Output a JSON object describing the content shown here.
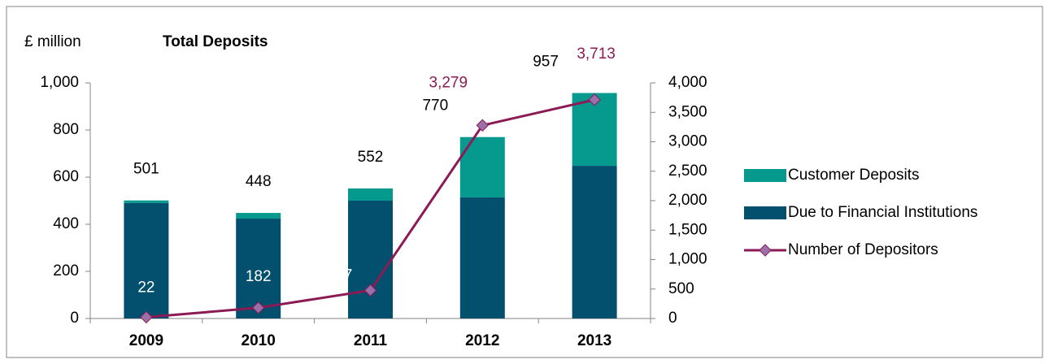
{
  "chart_data": {
    "type": "bar-line",
    "title": "Total Deposits",
    "y_label": "£ million",
    "categories": [
      "2009",
      "2010",
      "2011",
      "2012",
      "2013"
    ],
    "series": [
      {
        "name": "Due to Financial Institutions",
        "color": "#03506e",
        "values": [
          490,
          424,
          500,
          514,
          648
        ]
      },
      {
        "name": "Customer Deposits",
        "color": "#069a8e",
        "values": [
          11,
          24,
          52,
          256,
          309
        ]
      },
      {
        "name": "Number of Depositors",
        "color": "#8b1a55",
        "axis": "y2",
        "values": [
          22,
          182,
          477,
          3279,
          3713
        ],
        "value_labels": [
          "22",
          "182",
          "477",
          "3,279",
          "3,713"
        ]
      }
    ],
    "total_labels": [
      "501",
      "448",
      "552",
      "770",
      "957"
    ],
    "ylim": [
      0,
      1000
    ],
    "yticks": [
      0,
      200,
      400,
      600,
      800,
      {
        "value": 1000,
        "label": "1,000"
      }
    ],
    "y2lim": [
      0,
      4000
    ],
    "y2ticks": [
      0,
      500,
      {
        "value": 1000,
        "label": "1,000"
      },
      {
        "value": 1500,
        "label": "1,500"
      },
      {
        "value": 2000,
        "label": "2,000"
      },
      {
        "value": 2500,
        "label": "2,500"
      },
      {
        "value": 3000,
        "label": "3,000"
      },
      {
        "value": 3500,
        "label": "3,500"
      },
      {
        "value": 4000,
        "label": "4,000"
      }
    ]
  }
}
